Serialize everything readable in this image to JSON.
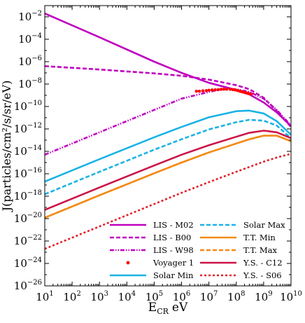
{
  "chart_data": {
    "type": "line",
    "xlabel": "E",
    "xlabel_sub": "CR",
    "xlabel_unit": "eV",
    "ylabel": "J(particles/cm²/s/sr/eV)",
    "x_scale": "log",
    "y_scale": "log",
    "xlim": [
      10,
      10000000000.0
    ],
    "ylim": [
      1e-26,
      0.1
    ],
    "grid": false,
    "legend_position": "lower-right",
    "x_ticks": [
      {
        "value": 10,
        "base": "10",
        "exp": "1"
      },
      {
        "value": 100,
        "base": "10",
        "exp": "2"
      },
      {
        "value": 1000,
        "base": "10",
        "exp": "3"
      },
      {
        "value": 10000,
        "base": "10",
        "exp": "4"
      },
      {
        "value": 100000,
        "base": "10",
        "exp": "5"
      },
      {
        "value": 1000000,
        "base": "10",
        "exp": "6"
      },
      {
        "value": 10000000,
        "base": "10",
        "exp": "7"
      },
      {
        "value": 100000000,
        "base": "10",
        "exp": "8"
      },
      {
        "value": 1000000000,
        "base": "10",
        "exp": "9"
      },
      {
        "value": 10000000000,
        "base": "10",
        "exp": "10"
      }
    ],
    "y_ticks": [
      {
        "value": 0.01,
        "base": "10",
        "exp": "−2"
      },
      {
        "value": 0.0001,
        "base": "10",
        "exp": "−4"
      },
      {
        "value": 1e-06,
        "base": "10",
        "exp": "−6"
      },
      {
        "value": 1e-08,
        "base": "10",
        "exp": "−8"
      },
      {
        "value": 1e-10,
        "base": "10",
        "exp": "−10"
      },
      {
        "value": 1e-12,
        "base": "10",
        "exp": "−12"
      },
      {
        "value": 1e-14,
        "base": "10",
        "exp": "−14"
      },
      {
        "value": 1e-16,
        "base": "10",
        "exp": "−16"
      },
      {
        "value": 1e-18,
        "base": "10",
        "exp": "−18"
      },
      {
        "value": 1e-20,
        "base": "10",
        "exp": "−20"
      },
      {
        "value": 1e-22,
        "base": "10",
        "exp": "−22"
      },
      {
        "value": 1e-24,
        "base": "10",
        "exp": "−24"
      },
      {
        "value": 1e-26,
        "base": "10",
        "exp": "−26"
      }
    ],
    "series": [
      {
        "name": "LIS - M02",
        "color": "#bf00bf",
        "style": "solid",
        "x": [
          10,
          1000.0,
          100000.0,
          1000000.0,
          10000000.0,
          100000000.0,
          300000000.0,
          1000000000.0,
          3000000000.0,
          10000000000.0
        ],
        "y": [
          0.02,
          0.00015,
          1e-06,
          1e-07,
          1.3e-08,
          3e-09,
          1.2e-09,
          2.3e-10,
          3e-11,
          1.8e-12
        ]
      },
      {
        "name": "LIS - B00",
        "color": "#bf00bf",
        "style": "dashed",
        "x": [
          10,
          1000.0,
          100000.0,
          1000000.0,
          10000000.0,
          100000000.0,
          300000000.0,
          1000000000.0,
          3000000000.0,
          10000000000.0
        ],
        "y": [
          4e-07,
          2e-07,
          9e-08,
          5.5e-08,
          2.5e-08,
          8e-09,
          3.5e-09,
          6e-10,
          4e-11,
          1.5e-12
        ]
      },
      {
        "name": "LIS - W98",
        "color": "#bf00bf",
        "style": "dashdotdot",
        "x": [
          10,
          1000.0,
          100000.0,
          1000000.0,
          10000000.0,
          30000000.0,
          100000000.0,
          300000000.0,
          1000000000.0,
          3000000000.0,
          10000000000.0
        ],
        "y": [
          5e-15,
          5e-13,
          5e-11,
          5e-10,
          2e-09,
          3.5e-09,
          3.5e-09,
          2e-09,
          5e-10,
          5e-11,
          2e-12
        ]
      },
      {
        "name": "Voyager 1",
        "color": "#ff0000",
        "style": "dots",
        "x": [
          3500000.0,
          4500000.0,
          6000000.0,
          8000000.0,
          10000000.0,
          13000000.0,
          17000000.0,
          22000000.0,
          28000000.0,
          35000000.0,
          45000000.0,
          60000000.0,
          75000000.0,
          90000000.0,
          110000000.0,
          130000000.0,
          150000000.0,
          170000000.0,
          200000000.0,
          230000000.0,
          260000000.0,
          300000000.0,
          350000000.0
        ],
        "y": [
          2.3e-09,
          2.3e-09,
          2.5e-09,
          2.6e-09,
          2.8e-09,
          3e-09,
          3.1e-09,
          3.2e-09,
          3.4e-09,
          3.5e-09,
          3.5e-09,
          3.4e-09,
          3.2e-09,
          3e-09,
          2.7e-09,
          2.4e-09,
          2.2e-09,
          2e-09,
          1.8e-09,
          1.6e-09,
          1.5e-09,
          1.4e-09,
          1.3e-09
        ]
      },
      {
        "name": "Solar Min",
        "color": "#1ab3e6",
        "style": "solid",
        "x": [
          10,
          1000.0,
          100000.0,
          1000000.0,
          10000000.0,
          100000000.0,
          300000000.0,
          1000000000.0,
          3000000000.0,
          10000000000.0
        ],
        "y": [
          2e-17,
          2e-15,
          1.8e-13,
          1.5e-12,
          1.1e-11,
          3.8e-11,
          4.3e-11,
          2.4e-11,
          5e-12,
          3e-13
        ]
      },
      {
        "name": "Solar Max",
        "color": "#1ab3e6",
        "style": "dashed",
        "x": [
          10,
          1000.0,
          100000.0,
          1000000.0,
          10000000.0,
          100000000.0,
          300000000.0,
          1000000000.0,
          3000000000.0,
          10000000000.0
        ],
        "y": [
          1.5e-18,
          1.5e-16,
          1.4e-14,
          1.2e-13,
          9e-13,
          4e-12,
          6.5e-12,
          5.5e-12,
          2e-12,
          1.5e-13
        ]
      },
      {
        "name": "T.T. Min",
        "color": "#f28a16",
        "style": "solid",
        "x": [
          10,
          1000.0,
          100000.0,
          1000000.0,
          10000000.0,
          100000000.0,
          300000000.0,
          1000000000.0,
          3000000000.0,
          10000000000.0
        ],
        "y": [
          1.2e-20,
          1.2e-18,
          1.1e-16,
          1e-15,
          8e-15,
          5e-14,
          1.2e-13,
          2.5e-13,
          2.5e-13,
          8e-14
        ]
      },
      {
        "name": "T.T. Max",
        "color": "#f28a16",
        "style": "dashed",
        "x": [
          10,
          1000.0,
          100000.0,
          1000000.0,
          10000000.0,
          100000000.0,
          300000000.0,
          1000000000.0,
          3000000000.0,
          10000000000.0
        ],
        "y": [
          1.2e-20,
          1.2e-18,
          1.1e-16,
          1e-15,
          8e-15,
          5e-14,
          1.2e-13,
          2.5e-13,
          2.5e-13,
          8e-14
        ]
      },
      {
        "name": "Y.S. - C12",
        "color": "#cc1448",
        "style": "solid",
        "x": [
          10,
          1000.0,
          100000.0,
          1000000.0,
          10000000.0,
          100000000.0,
          300000000.0,
          1000000000.0,
          3000000000.0,
          10000000000.0
        ],
        "y": [
          6e-20,
          6e-18,
          5.5e-16,
          5e-15,
          3.5e-14,
          2e-13,
          4.5e-13,
          7e-13,
          5e-13,
          1.5e-13
        ]
      },
      {
        "name": "Y.S. - S06",
        "color": "#e0202a",
        "style": "dotted",
        "x": [
          10,
          1000.0,
          100000.0,
          1000000.0,
          10000000.0,
          100000000.0,
          1000000000.0,
          3000000000.0,
          10000000000.0
        ],
        "y": [
          2e-23,
          2e-21,
          2e-19,
          2e-18,
          1.8e-17,
          1.5e-16,
          1.2e-15,
          2.8e-15,
          6e-15
        ]
      }
    ],
    "legend_columns": [
      [
        "LIS - M02",
        "LIS - B00",
        "LIS - W98",
        "Voyager 1",
        "Solar Min"
      ],
      [
        "Solar Max",
        "T.T. Min",
        "T.T. Max",
        "Y.S. - C12",
        "Y.S. - S06"
      ]
    ]
  }
}
